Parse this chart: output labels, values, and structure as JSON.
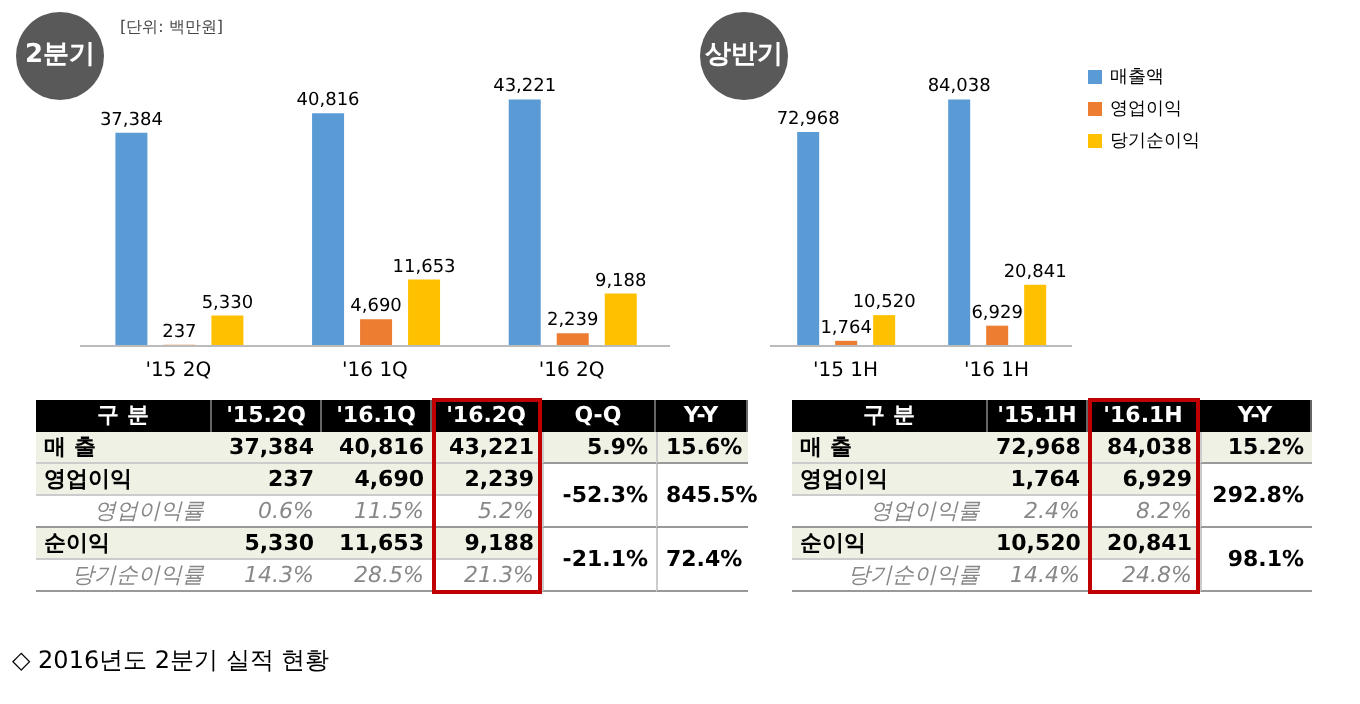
{
  "chart_data": [
    {
      "type": "bar",
      "title": "2분기",
      "subtitle": "[단위: 백만원]",
      "categories": [
        "'15 2Q",
        "'16 1Q",
        "'16 2Q"
      ],
      "tick_labels": "x",
      "legend": false,
      "series": [
        {
          "color": "#5b9bd5",
          "values": [
            37384,
            40816,
            43221
          ],
          "value_labels": [
            "37,384",
            "40,816",
            "43,221"
          ]
        },
        {
          "color": "#ed7d31",
          "values": [
            237,
            4690,
            2239
          ],
          "value_labels": [
            "237",
            "4,690",
            "2,239"
          ]
        },
        {
          "color": "#ffc000",
          "values": [
            5330,
            11653,
            9188
          ],
          "value_labels": [
            "5,330",
            "11,653",
            "9,188"
          ]
        }
      ],
      "annotations": [
        "구 분",
        "'15.2Q",
        "'16.1Q",
        "'16.2Q",
        "Q-Q",
        "Y-Y",
        "매 출",
        "5.9%",
        "15.6%",
        "영업이익",
        "-52.3%",
        "845.5%",
        "영업이익률",
        "0.6%",
        "11.5%",
        "5.2%",
        "순이익",
        "-21.1%",
        "72.4%",
        "당기순이익률",
        "14.3%",
        "28.5%",
        "21.3%"
      ]
    },
    {
      "type": "bar",
      "title": "상반기",
      "categories": [
        "'15 1H",
        "'16 1H"
      ],
      "tick_labels": "x",
      "legend": "top right",
      "series": [
        {
          "name": "매출액",
          "color": "#5b9bd5",
          "values": [
            72968,
            84038
          ],
          "value_labels": [
            "72,968",
            "84,038"
          ]
        },
        {
          "name": "영업이익",
          "color": "#ed7d31",
          "values": [
            1764,
            6929
          ],
          "value_labels": [
            "1,764",
            "6,929"
          ]
        },
        {
          "name": "당기순이익",
          "color": "#ffc000",
          "values": [
            10520,
            20841
          ],
          "value_labels": [
            "10,520",
            "20,841"
          ]
        }
      ],
      "annotations": [
        "구 분",
        "'15.1H",
        "'16.1H",
        "Y-Y",
        "매 출",
        "15.2%",
        "영업이익",
        "292.8%",
        "영업이익률",
        "2.4%",
        "8.2%",
        "순이익",
        "98.1%",
        "당기순이익률",
        "14.4%",
        "24.8%",
        "◇ 2016년도 2분기 실적 현황"
      ]
    }
  ]
}
